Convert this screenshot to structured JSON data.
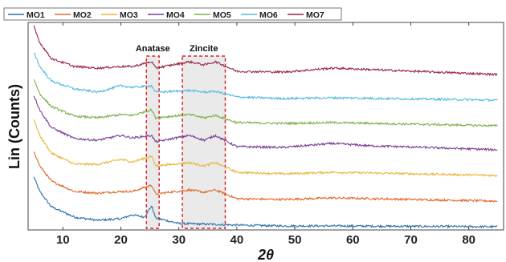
{
  "chart_data": {
    "type": "line",
    "xlabel": "2θ",
    "ylabel": "Lin (Counts)",
    "xlim": [
      4,
      86
    ],
    "xticks": [
      10,
      20,
      30,
      40,
      50,
      60,
      70,
      80
    ],
    "grid": false,
    "legend_position": "top",
    "regions": [
      {
        "label": "Anatase",
        "range": [
          24.4,
          26.6
        ]
      },
      {
        "label": "Zincite",
        "range": [
          30.6,
          38.0
        ]
      }
    ],
    "series": [
      {
        "name": "MO1",
        "color": "#2c6faa",
        "offset": 0,
        "values": [
          [
            5,
            62
          ],
          [
            6,
            44
          ],
          [
            8,
            25
          ],
          [
            12,
            12
          ],
          [
            16,
            8
          ],
          [
            20,
            10
          ],
          [
            22,
            15
          ],
          [
            24,
            12
          ],
          [
            25.3,
            26
          ],
          [
            26,
            11
          ],
          [
            30,
            4
          ],
          [
            36,
            3
          ],
          [
            40,
            2
          ],
          [
            48,
            1
          ],
          [
            56.5,
            1
          ],
          [
            85,
            0
          ]
        ]
      },
      {
        "name": "MO2",
        "color": "#e0692a",
        "offset": 32,
        "values": [
          [
            5,
            62
          ],
          [
            6,
            44
          ],
          [
            8,
            25
          ],
          [
            12,
            12
          ],
          [
            16,
            10
          ],
          [
            20,
            12
          ],
          [
            22,
            12
          ],
          [
            25.3,
            20
          ],
          [
            26,
            9
          ],
          [
            31.8,
            14
          ],
          [
            34.4,
            11
          ],
          [
            36.3,
            14
          ],
          [
            40,
            3
          ],
          [
            48,
            2
          ],
          [
            56.5,
            4
          ],
          [
            85,
            0
          ]
        ]
      },
      {
        "name": "MO3",
        "color": "#e9b53a",
        "offset": 64,
        "values": [
          [
            5,
            70
          ],
          [
            6,
            50
          ],
          [
            8,
            28
          ],
          [
            12,
            14
          ],
          [
            16,
            14
          ],
          [
            20,
            20
          ],
          [
            22,
            17
          ],
          [
            25.3,
            24
          ],
          [
            26,
            12
          ],
          [
            31.8,
            16
          ],
          [
            34.4,
            12
          ],
          [
            36.3,
            16
          ],
          [
            40,
            4
          ],
          [
            48,
            2
          ],
          [
            56.5,
            4
          ],
          [
            85,
            0
          ]
        ]
      },
      {
        "name": "MO4",
        "color": "#7a3d96",
        "offset": 96,
        "values": [
          [
            5,
            68
          ],
          [
            6,
            50
          ],
          [
            8,
            28
          ],
          [
            12,
            14
          ],
          [
            16,
            12
          ],
          [
            20,
            18
          ],
          [
            22,
            15
          ],
          [
            25.3,
            18
          ],
          [
            26,
            10
          ],
          [
            31.8,
            18
          ],
          [
            34.4,
            12
          ],
          [
            36.3,
            18
          ],
          [
            40,
            4
          ],
          [
            48,
            3
          ],
          [
            56.5,
            8
          ],
          [
            63,
            5
          ],
          [
            68,
            4
          ],
          [
            85,
            0
          ]
        ]
      },
      {
        "name": "MO5",
        "color": "#7cb04a",
        "offset": 126,
        "values": [
          [
            5,
            58
          ],
          [
            6,
            40
          ],
          [
            8,
            24
          ],
          [
            12,
            12
          ],
          [
            16,
            10
          ],
          [
            20,
            14
          ],
          [
            22,
            13
          ],
          [
            25.3,
            20
          ],
          [
            26,
            10
          ],
          [
            31.8,
            14
          ],
          [
            34.4,
            10
          ],
          [
            36.3,
            13
          ],
          [
            40,
            4
          ],
          [
            48,
            3
          ],
          [
            56.5,
            4
          ],
          [
            85,
            0
          ]
        ]
      },
      {
        "name": "MO6",
        "color": "#55b8e0",
        "offset": 158,
        "values": [
          [
            5,
            60
          ],
          [
            6,
            42
          ],
          [
            8,
            24
          ],
          [
            12,
            14
          ],
          [
            16,
            10
          ],
          [
            20,
            18
          ],
          [
            22,
            16
          ],
          [
            25.3,
            18
          ],
          [
            26,
            10
          ],
          [
            31.8,
            12
          ],
          [
            34.4,
            10
          ],
          [
            36.3,
            11
          ],
          [
            40,
            4
          ],
          [
            48,
            2
          ],
          [
            56.5,
            3
          ],
          [
            85,
            0
          ]
        ]
      },
      {
        "name": "MO7",
        "color": "#9a2740",
        "offset": 190,
        "values": [
          [
            5,
            60
          ],
          [
            6,
            40
          ],
          [
            8,
            20
          ],
          [
            12,
            10
          ],
          [
            16,
            8
          ],
          [
            20,
            10
          ],
          [
            22,
            10
          ],
          [
            25.3,
            16
          ],
          [
            26,
            8
          ],
          [
            31.8,
            16
          ],
          [
            34.4,
            12
          ],
          [
            36.3,
            16
          ],
          [
            40,
            4
          ],
          [
            48,
            3
          ],
          [
            56.5,
            8
          ],
          [
            85,
            0
          ]
        ]
      }
    ]
  }
}
